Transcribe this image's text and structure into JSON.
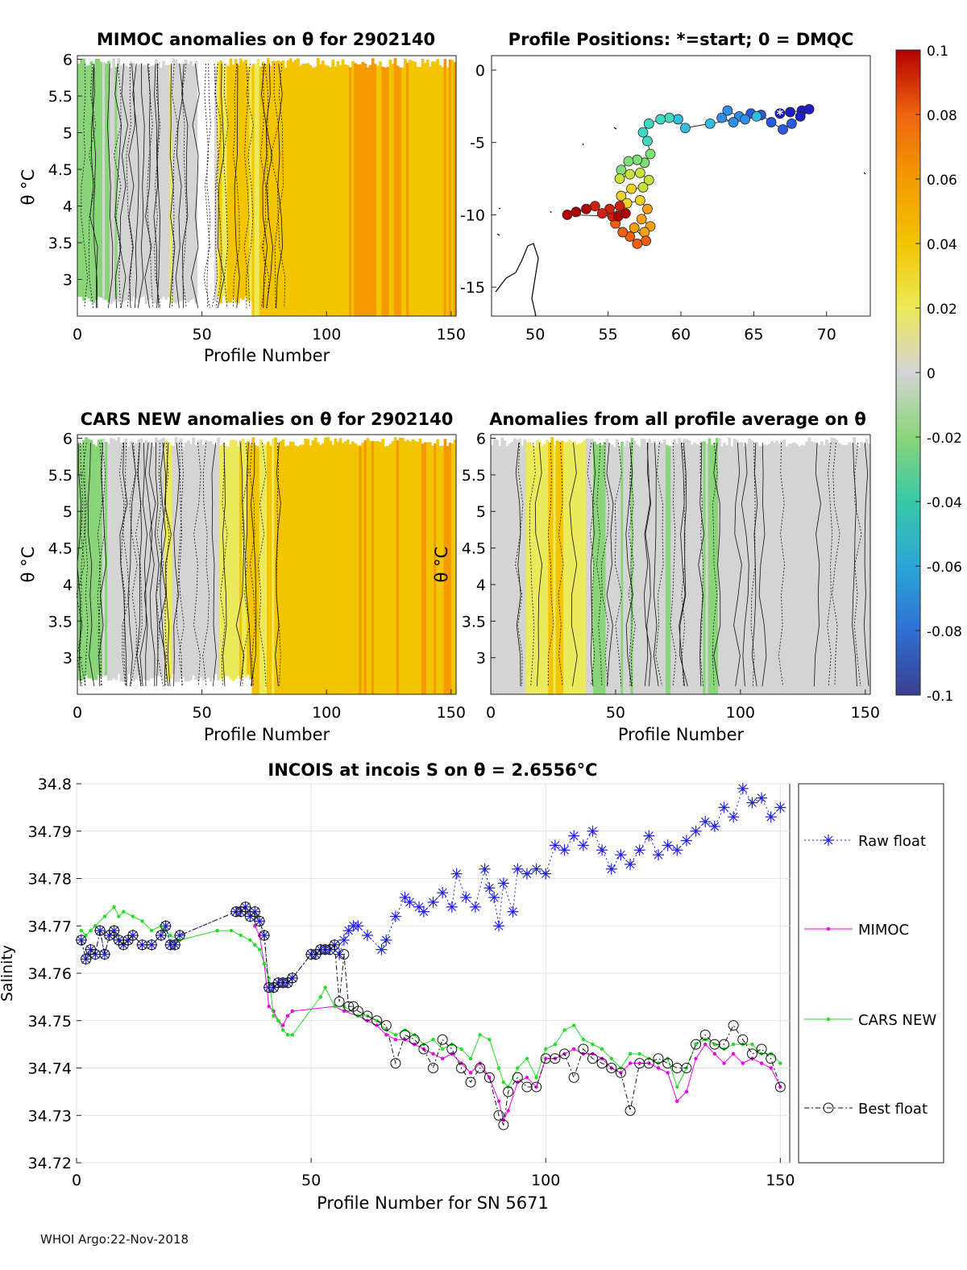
{
  "footer": "WHOI Argo:22-Nov-2018",
  "colorbar": {
    "ticks": [
      "0.1",
      "0.08",
      "0.06",
      "0.04",
      "0.02",
      "0",
      "-0.02",
      "-0.04",
      "-0.06",
      "-0.08",
      "-0.1"
    ],
    "colors": [
      "#3a3f8f",
      "#2f6fd6",
      "#2aa6d6",
      "#37c9a8",
      "#8ad57a",
      "#d4d4d4",
      "#ece95a",
      "#f2c500",
      "#f49a00",
      "#ee6410",
      "#b40000"
    ]
  },
  "chart_data": [
    {
      "id": "mimoc",
      "type": "heatmap",
      "title": "MIMOC anomalies on θ  for 2902140",
      "xlabel": "Profile Number",
      "ylabel": "θ °C",
      "xlim": [
        0,
        152
      ],
      "ylim": [
        2.5,
        6.05
      ],
      "xticks": [
        "0",
        "50",
        "100",
        "150"
      ],
      "yticks": [
        "3",
        "3.5",
        "4",
        "4.5",
        "5",
        "5.5",
        "6"
      ],
      "column_anomaly": [
        -0.02,
        -0.015,
        -0.01,
        -0.005,
        -0.005,
        0.0,
        0.005,
        0.0,
        0.005,
        0.01,
        0.03,
        0.035,
        0.03,
        0.035,
        0.04,
        0.045,
        0.04,
        0.04,
        0.045,
        0.05,
        0.055,
        0.05,
        0.05,
        0.045,
        0.045,
        0.04,
        0.05
      ]
    },
    {
      "id": "positions",
      "type": "scatter",
      "title": "Profile Positions: *=start; 0 = DMQC",
      "xlim": [
        47,
        73
      ],
      "ylim": [
        -17,
        1
      ],
      "xticks": [
        "50",
        "55",
        "60",
        "65",
        "70"
      ],
      "yticks": [
        "0",
        "-5",
        "-10",
        "-15"
      ],
      "points": [
        [
          66.8,
          -3.0
        ],
        [
          67.5,
          -2.9
        ],
        [
          68.3,
          -2.8
        ],
        [
          68.8,
          -2.7
        ],
        [
          68.2,
          -3.2
        ],
        [
          67.6,
          -3.7
        ],
        [
          67.0,
          -4.1
        ],
        [
          66.2,
          -3.6
        ],
        [
          65.5,
          -3.1
        ],
        [
          64.8,
          -3.0
        ],
        [
          64.0,
          -3.2
        ],
        [
          63.2,
          -2.8
        ],
        [
          62.8,
          -3.3
        ],
        [
          63.6,
          -3.6
        ],
        [
          64.4,
          -3.4
        ],
        [
          65.2,
          -3.2
        ],
        [
          62.0,
          -3.7
        ],
        [
          60.3,
          -4.0
        ],
        [
          59.8,
          -3.4
        ],
        [
          59.2,
          -3.3
        ],
        [
          58.6,
          -3.4
        ],
        [
          57.8,
          -3.7
        ],
        [
          57.4,
          -4.3
        ],
        [
          57.7,
          -4.9
        ],
        [
          57.9,
          -5.8
        ],
        [
          57.5,
          -6.4
        ],
        [
          57.0,
          -6.2
        ],
        [
          56.4,
          -6.3
        ],
        [
          55.9,
          -6.9
        ],
        [
          55.8,
          -7.5
        ],
        [
          56.5,
          -7.2
        ],
        [
          57.2,
          -7.1
        ],
        [
          57.8,
          -7.6
        ],
        [
          57.4,
          -8.1
        ],
        [
          56.6,
          -8.2
        ],
        [
          55.9,
          -8.7
        ],
        [
          56.3,
          -9.2
        ],
        [
          57.2,
          -9.0
        ],
        [
          57.7,
          -9.6
        ],
        [
          57.3,
          -10.3
        ],
        [
          57.9,
          -10.8
        ],
        [
          57.5,
          -11.2
        ],
        [
          56.8,
          -10.9
        ],
        [
          57.6,
          -11.8
        ],
        [
          57.0,
          -12.0
        ],
        [
          56.5,
          -11.5
        ],
        [
          56.0,
          -11.2
        ],
        [
          55.5,
          -10.6
        ],
        [
          55.3,
          -10.1
        ],
        [
          55.8,
          -9.4
        ],
        [
          55.1,
          -9.6
        ],
        [
          54.6,
          -9.9
        ],
        [
          54.1,
          -9.4
        ],
        [
          53.5,
          -9.6
        ],
        [
          52.8,
          -9.8
        ],
        [
          52.2,
          -10.0
        ],
        [
          55.7,
          -10.1
        ],
        [
          56.2,
          -9.9
        ]
      ],
      "start": [
        66.8,
        -3.0
      ]
    },
    {
      "id": "cars",
      "type": "heatmap",
      "title": "CARS NEW anomalies on θ for 2902140",
      "xlabel": "Profile Number",
      "ylabel": "θ °C",
      "xlim": [
        0,
        152
      ],
      "ylim": [
        2.5,
        6.05
      ],
      "xticks": [
        "0",
        "50",
        "100",
        "150"
      ],
      "yticks": [
        "3",
        "3.5",
        "4",
        "4.5",
        "5",
        "5.5",
        "6"
      ],
      "column_anomaly": [
        -0.02,
        -0.015,
        -0.005,
        0.0,
        0.005,
        0.0,
        0.01,
        0.0,
        0.0,
        0.0,
        0.02,
        0.03,
        0.035,
        0.035,
        0.04,
        0.04,
        0.04,
        0.045,
        0.045,
        0.045,
        0.05,
        0.045,
        0.05,
        0.045,
        0.045,
        0.045,
        0.05
      ]
    },
    {
      "id": "avg",
      "type": "heatmap",
      "title": "Anomalies from all profile average on θ",
      "xlabel": "Profile Number",
      "ylabel": "θ °C",
      "xlim": [
        0,
        152
      ],
      "ylim": [
        2.5,
        6.05
      ],
      "xticks": [
        "0",
        "50",
        "100",
        "150"
      ],
      "yticks": [
        "3",
        "3.5",
        "4",
        "4.5",
        "5",
        "5.5",
        "6"
      ],
      "column_anomaly": [
        -0.005,
        0.0,
        0.01,
        0.02,
        0.03,
        0.025,
        0.01,
        -0.01,
        -0.005,
        -0.01,
        0.0,
        -0.005,
        -0.01,
        -0.005,
        0.0,
        -0.01,
        -0.005,
        0.0,
        0.0,
        0.005,
        0.0,
        -0.005,
        0.0,
        0.0,
        0.005,
        0.0,
        0.005
      ]
    },
    {
      "id": "salinity",
      "type": "line",
      "title": "INCOIS at incois S on θ = 2.6556°C",
      "xlabel": "Profile Number for SN 5671",
      "ylabel": "Salinity",
      "xlim": [
        0,
        152
      ],
      "ylim": [
        34.72,
        34.8
      ],
      "xticks": [
        "0",
        "50",
        "100",
        "150"
      ],
      "yticks": [
        "34.72",
        "34.73",
        "34.74",
        "34.75",
        "34.76",
        "34.77",
        "34.78",
        "34.79",
        "34.8"
      ],
      "series": [
        {
          "name": "Raw float",
          "x": [
            1,
            2,
            3,
            4,
            5,
            6,
            7,
            8,
            9,
            10,
            11,
            12,
            14,
            16,
            18,
            19,
            20,
            21,
            22,
            34,
            35,
            36,
            37,
            38,
            39,
            40,
            41,
            42,
            43,
            44,
            45,
            46,
            50,
            51,
            52,
            53,
            54,
            55,
            56,
            57,
            58,
            59,
            60,
            62,
            65,
            66,
            68,
            70,
            71,
            73,
            74,
            76,
            78,
            80,
            81,
            83,
            85,
            87,
            88,
            89,
            90,
            91,
            93,
            94,
            96,
            98,
            100,
            102,
            104,
            106,
            108,
            110,
            112,
            114,
            116,
            118,
            120,
            122,
            124,
            126,
            128,
            130,
            132,
            134,
            136,
            138,
            140,
            142,
            144,
            146,
            148,
            150
          ],
          "values": [
            34.767,
            34.763,
            34.765,
            34.764,
            34.769,
            34.764,
            34.768,
            34.769,
            34.767,
            34.766,
            34.767,
            34.768,
            34.766,
            34.766,
            34.768,
            34.77,
            34.766,
            34.766,
            34.768,
            34.773,
            34.773,
            34.774,
            34.772,
            34.773,
            34.771,
            34.768,
            34.757,
            34.757,
            34.758,
            34.758,
            34.758,
            34.759,
            34.764,
            34.764,
            34.765,
            34.765,
            34.765,
            34.766,
            34.764,
            34.767,
            34.769,
            34.77,
            34.77,
            34.768,
            34.765,
            34.767,
            34.772,
            34.776,
            34.775,
            34.774,
            34.773,
            34.775,
            34.777,
            34.774,
            34.781,
            34.776,
            34.774,
            34.782,
            34.778,
            34.776,
            34.77,
            34.779,
            34.773,
            34.782,
            34.781,
            34.782,
            34.781,
            34.787,
            34.786,
            34.789,
            34.787,
            34.79,
            34.786,
            34.782,
            34.785,
            34.783,
            34.786,
            34.789,
            34.785,
            34.787,
            34.786,
            34.788,
            34.79,
            34.792,
            34.791,
            34.795,
            34.793,
            34.799,
            34.796,
            34.797,
            34.793,
            34.795
          ]
        },
        {
          "name": "MIMOC",
          "x": [
            38,
            39,
            40,
            41,
            42,
            43,
            44,
            45,
            46,
            55,
            57,
            60,
            62,
            64,
            66,
            68,
            70,
            72,
            74,
            76,
            78,
            80,
            82,
            84,
            86,
            88,
            90,
            91,
            92,
            94,
            96,
            98,
            100,
            102,
            104,
            106,
            108,
            110,
            112,
            114,
            116,
            118,
            120,
            122,
            124,
            126,
            128,
            130,
            132,
            134,
            136,
            138,
            140,
            142,
            144,
            146,
            148,
            150
          ],
          "values": [
            34.77,
            34.768,
            34.762,
            34.753,
            34.752,
            34.75,
            34.749,
            34.751,
            34.752,
            34.753,
            34.752,
            34.751,
            34.75,
            34.749,
            34.747,
            34.746,
            34.746,
            34.745,
            34.744,
            34.743,
            34.742,
            34.743,
            34.741,
            34.739,
            34.741,
            34.738,
            34.733,
            34.729,
            34.731,
            34.737,
            34.738,
            34.736,
            34.742,
            34.742,
            34.743,
            34.744,
            34.743,
            34.743,
            34.742,
            34.74,
            34.739,
            34.741,
            34.741,
            34.741,
            34.74,
            34.739,
            34.733,
            34.735,
            34.742,
            34.745,
            34.743,
            34.741,
            34.743,
            34.741,
            34.742,
            34.741,
            34.74,
            34.736
          ]
        },
        {
          "name": "CARS NEW",
          "x": [
            1,
            2,
            3,
            4,
            6,
            8,
            9,
            10,
            12,
            14,
            16,
            18,
            20,
            22,
            30,
            33,
            35,
            37,
            38,
            39,
            40,
            41,
            42,
            43,
            44,
            45,
            46,
            52,
            53,
            55,
            57,
            60,
            62,
            64,
            66,
            68,
            70,
            72,
            74,
            76,
            78,
            80,
            82,
            84,
            86,
            88,
            90,
            91,
            92,
            94,
            96,
            98,
            100,
            102,
            104,
            106,
            108,
            110,
            112,
            114,
            116,
            118,
            120,
            122,
            124,
            126,
            128,
            130,
            132,
            134,
            136,
            138,
            140,
            142,
            144,
            146,
            148,
            150
          ],
          "values": [
            34.769,
            34.768,
            34.769,
            34.77,
            34.772,
            34.774,
            34.772,
            34.773,
            34.772,
            34.771,
            34.769,
            34.77,
            34.768,
            34.767,
            34.769,
            34.769,
            34.768,
            34.767,
            34.766,
            34.765,
            34.762,
            34.759,
            34.751,
            34.75,
            34.748,
            34.747,
            34.747,
            34.755,
            34.757,
            34.753,
            34.753,
            34.751,
            34.751,
            34.75,
            34.748,
            34.747,
            34.748,
            34.747,
            34.745,
            34.746,
            34.744,
            34.745,
            34.744,
            34.742,
            34.747,
            34.746,
            34.74,
            34.737,
            34.736,
            34.74,
            34.742,
            34.738,
            34.744,
            34.745,
            34.748,
            34.749,
            34.746,
            34.745,
            34.744,
            34.742,
            34.74,
            34.743,
            34.743,
            34.742,
            34.741,
            34.742,
            34.736,
            34.74,
            34.745,
            34.746,
            34.745,
            34.744,
            34.745,
            34.745,
            34.745,
            34.743,
            34.743,
            34.741
          ]
        },
        {
          "name": "Best float",
          "x": [
            1,
            2,
            3,
            4,
            5,
            6,
            7,
            8,
            9,
            10,
            11,
            12,
            14,
            16,
            18,
            19,
            20,
            21,
            22,
            34,
            35,
            36,
            37,
            38,
            39,
            40,
            41,
            42,
            43,
            44,
            45,
            46,
            50,
            51,
            52,
            53,
            54,
            55,
            56,
            57,
            58,
            59,
            60,
            62,
            64,
            66,
            68,
            70,
            72,
            74,
            76,
            78,
            80,
            82,
            84,
            86,
            88,
            90,
            91,
            92,
            94,
            96,
            98,
            100,
            102,
            104,
            106,
            108,
            110,
            112,
            114,
            116,
            118,
            120,
            122,
            124,
            126,
            128,
            130,
            132,
            134,
            136,
            138,
            140,
            142,
            144,
            146,
            148,
            150
          ],
          "values": [
            34.767,
            34.763,
            34.765,
            34.764,
            34.769,
            34.764,
            34.768,
            34.769,
            34.767,
            34.766,
            34.767,
            34.768,
            34.766,
            34.766,
            34.768,
            34.77,
            34.766,
            34.766,
            34.768,
            34.773,
            34.773,
            34.774,
            34.772,
            34.773,
            34.771,
            34.768,
            34.757,
            34.757,
            34.758,
            34.758,
            34.758,
            34.759,
            34.764,
            34.764,
            34.765,
            34.765,
            34.765,
            34.766,
            34.754,
            34.764,
            34.753,
            34.753,
            34.752,
            34.751,
            34.75,
            34.749,
            34.741,
            34.747,
            34.746,
            34.744,
            34.74,
            34.746,
            34.744,
            34.74,
            34.737,
            34.74,
            34.738,
            34.73,
            34.728,
            34.735,
            34.738,
            34.736,
            34.736,
            34.742,
            34.742,
            34.743,
            34.738,
            34.744,
            34.742,
            34.741,
            34.74,
            34.739,
            34.731,
            34.741,
            34.741,
            34.742,
            34.741,
            34.74,
            34.74,
            34.745,
            34.747,
            34.745,
            34.745,
            34.749,
            34.746,
            34.743,
            34.744,
            34.742,
            34.736
          ]
        }
      ],
      "legend": [
        "Raw float",
        "MIMOC",
        "CARS NEW",
        "Best float"
      ]
    }
  ]
}
